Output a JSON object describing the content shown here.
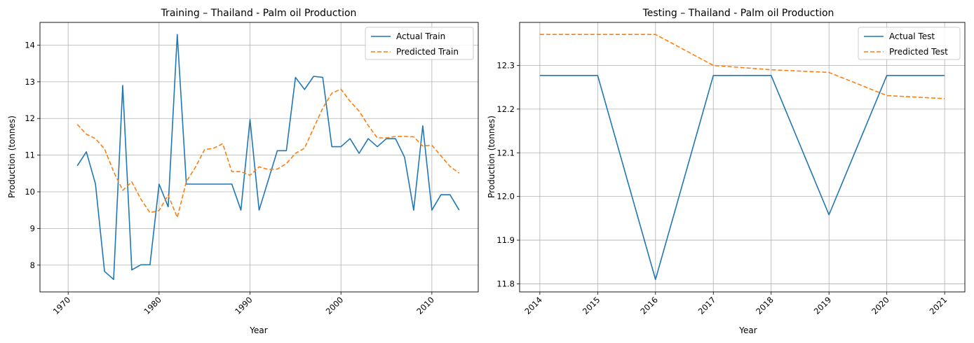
{
  "colors": {
    "actual": "#1f77b4",
    "predicted": "#ff7f0e",
    "grid": "#b0b0b0"
  },
  "chart_data": [
    {
      "type": "line",
      "title": "Training – Thailand - Palm oil Production",
      "xlabel": "Year",
      "ylabel": "Production (tonnes)",
      "xlim": [
        1966.9,
        2015.1
      ],
      "ylim": [
        7.27,
        14.62
      ],
      "xticks": [
        1970,
        1980,
        1990,
        2000,
        2010
      ],
      "yticks": [
        8,
        9,
        10,
        11,
        12,
        13,
        14
      ],
      "grid": true,
      "legend": "top-right",
      "x": [
        1971,
        1972,
        1973,
        1974,
        1975,
        1976,
        1977,
        1978,
        1979,
        1980,
        1981,
        1982,
        1983,
        1984,
        1985,
        1986,
        1987,
        1988,
        1989,
        1990,
        1991,
        1992,
        1993,
        1994,
        1995,
        1996,
        1997,
        1998,
        1999,
        2000,
        2001,
        2002,
        2003,
        2004,
        2005,
        2006,
        2007,
        2008,
        2009,
        2010,
        2011,
        2012,
        2013
      ],
      "series": [
        {
          "name": "Actual Train",
          "style": "solid",
          "values": [
            10.71,
            11.09,
            10.22,
            7.83,
            7.61,
            12.9,
            7.87,
            8.01,
            8.01,
            10.21,
            9.59,
            14.29,
            10.21,
            10.21,
            10.21,
            10.21,
            10.21,
            10.21,
            9.5,
            11.97,
            9.5,
            10.31,
            11.12,
            11.12,
            13.12,
            12.79,
            13.15,
            13.12,
            11.23,
            11.23,
            11.45,
            11.05,
            11.45,
            11.23,
            11.45,
            11.45,
            10.94,
            9.5,
            11.8,
            9.5,
            9.92,
            9.92,
            9.5
          ]
        },
        {
          "name": "Predicted Train",
          "style": "dashed",
          "values": [
            11.84,
            11.57,
            11.45,
            11.17,
            10.55,
            10.04,
            10.27,
            9.8,
            9.43,
            9.49,
            9.91,
            9.3,
            10.28,
            10.67,
            11.15,
            11.19,
            11.31,
            10.55,
            10.55,
            10.45,
            10.68,
            10.61,
            10.62,
            10.77,
            11.05,
            11.19,
            11.74,
            12.28,
            12.69,
            12.8,
            12.47,
            12.2,
            11.81,
            11.47,
            11.47,
            11.51,
            11.51,
            11.5,
            11.25,
            11.27,
            10.98,
            10.69,
            10.51
          ]
        }
      ]
    },
    {
      "type": "line",
      "title": "Testing – Thailand - Palm oil Production",
      "xlabel": "Year",
      "ylabel": "Production (tonnes)",
      "xlim": [
        2013.65,
        2021.35
      ],
      "ylim": [
        11.7815,
        12.3985
      ],
      "xticks": [
        2014,
        2015,
        2016,
        2017,
        2018,
        2019,
        2020,
        2021
      ],
      "yticks": [
        11.8,
        11.9,
        12.0,
        12.1,
        12.2,
        12.3
      ],
      "grid": true,
      "legend": "top-right",
      "x": [
        2014,
        2015,
        2016,
        2017,
        2018,
        2019,
        2020,
        2021
      ],
      "series": [
        {
          "name": "Actual Test",
          "style": "solid",
          "values": [
            12.277,
            12.277,
            11.81,
            12.277,
            12.277,
            11.958,
            12.277,
            12.277
          ]
        },
        {
          "name": "Predicted Test",
          "style": "dashed",
          "values": [
            12.371,
            12.371,
            12.371,
            12.3,
            12.29,
            12.284,
            12.231,
            12.224
          ]
        }
      ]
    }
  ]
}
